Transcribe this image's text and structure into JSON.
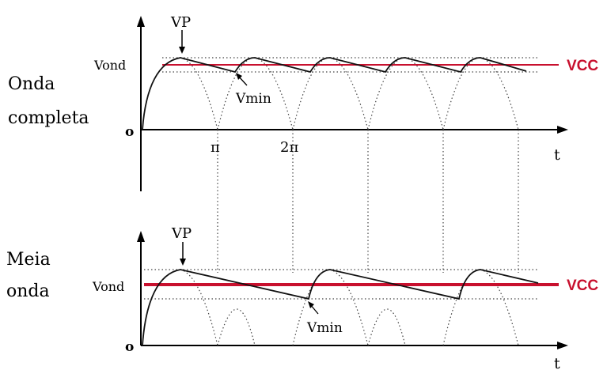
{
  "colors": {
    "vcc": "#c8102e",
    "wave": "#111111",
    "axis": "#000000",
    "guides": "#444444"
  },
  "top": {
    "title_line1": "Onda",
    "title_line2": "completa",
    "vp_label": "VP",
    "vond_label": "Vond",
    "vmin_label": "Vmin",
    "vcc_label": "VCC",
    "origin_label": "o",
    "pi_label": "π",
    "two_pi_label": "2π",
    "t_label": "t"
  },
  "bottom": {
    "title_line1": "Meia",
    "title_line2": "onda",
    "vp_label": "VP",
    "vond_label": "Vond",
    "vmin_label": "Vmin",
    "vcc_label": "VCC",
    "origin_label": "o",
    "t_label": "t"
  }
}
